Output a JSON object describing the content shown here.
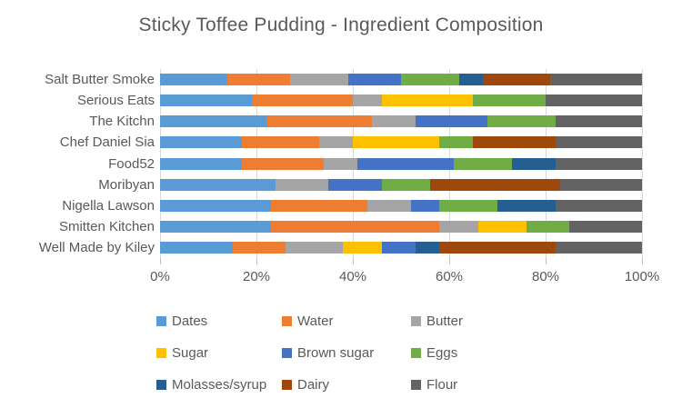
{
  "title": "Sticky Toffee Pudding - Ingredient Composition",
  "chart_data": {
    "type": "bar",
    "orientation": "horizontal",
    "stacked": true,
    "stacked_to_100_percent": true,
    "title": "Sticky Toffee Pudding - Ingredient Composition",
    "xlabel": "",
    "ylabel": "",
    "xlim": [
      0,
      100
    ],
    "x_ticks": [
      "0%",
      "20%",
      "40%",
      "60%",
      "80%",
      "100%"
    ],
    "x_tick_values": [
      0,
      20,
      40,
      60,
      80,
      100
    ],
    "grid": "vertical",
    "legend_position": "bottom",
    "legend_columns": 3,
    "text_color": "#595959",
    "gridline_color": "#d9d9d9",
    "categories": [
      "Salt Butter Smoke",
      "Serious Eats",
      "The Kitchn",
      "Chef Daniel Sia",
      "Food52",
      "Moribyan",
      "Nigella Lawson",
      "Smitten Kitchen",
      "Well Made by Kiley"
    ],
    "series": [
      {
        "name": "Dates",
        "color": "#5B9BD5",
        "values": [
          14,
          19,
          22,
          17,
          17,
          24,
          23,
          23,
          15
        ]
      },
      {
        "name": "Water",
        "color": "#ED7D31",
        "values": [
          13,
          21,
          22,
          16,
          17,
          0,
          20,
          35,
          11
        ]
      },
      {
        "name": "Butter",
        "color": "#A5A5A5",
        "values": [
          12,
          6,
          9,
          7,
          7,
          11,
          9,
          8,
          12
        ]
      },
      {
        "name": "Sugar",
        "color": "#FFC000",
        "values": [
          0,
          19,
          0,
          18,
          0,
          0,
          0,
          10,
          8
        ]
      },
      {
        "name": "Brown sugar",
        "color": "#4472C4",
        "values": [
          11,
          0,
          15,
          0,
          20,
          11,
          6,
          0,
          7
        ]
      },
      {
        "name": "Eggs",
        "color": "#70AD47",
        "values": [
          12,
          15,
          14,
          7,
          12,
          10,
          12,
          9,
          0
        ]
      },
      {
        "name": "Molasses/syrup",
        "color": "#255E91",
        "values": [
          5,
          0,
          0,
          0,
          9,
          0,
          12,
          0,
          5
        ]
      },
      {
        "name": "Dairy",
        "color": "#9E480E",
        "values": [
          14,
          0,
          0,
          17,
          0,
          27,
          0,
          0,
          24
        ]
      },
      {
        "name": "Flour",
        "color": "#636363",
        "values": [
          19,
          20,
          18,
          18,
          18,
          17,
          18,
          15,
          18
        ]
      }
    ]
  }
}
